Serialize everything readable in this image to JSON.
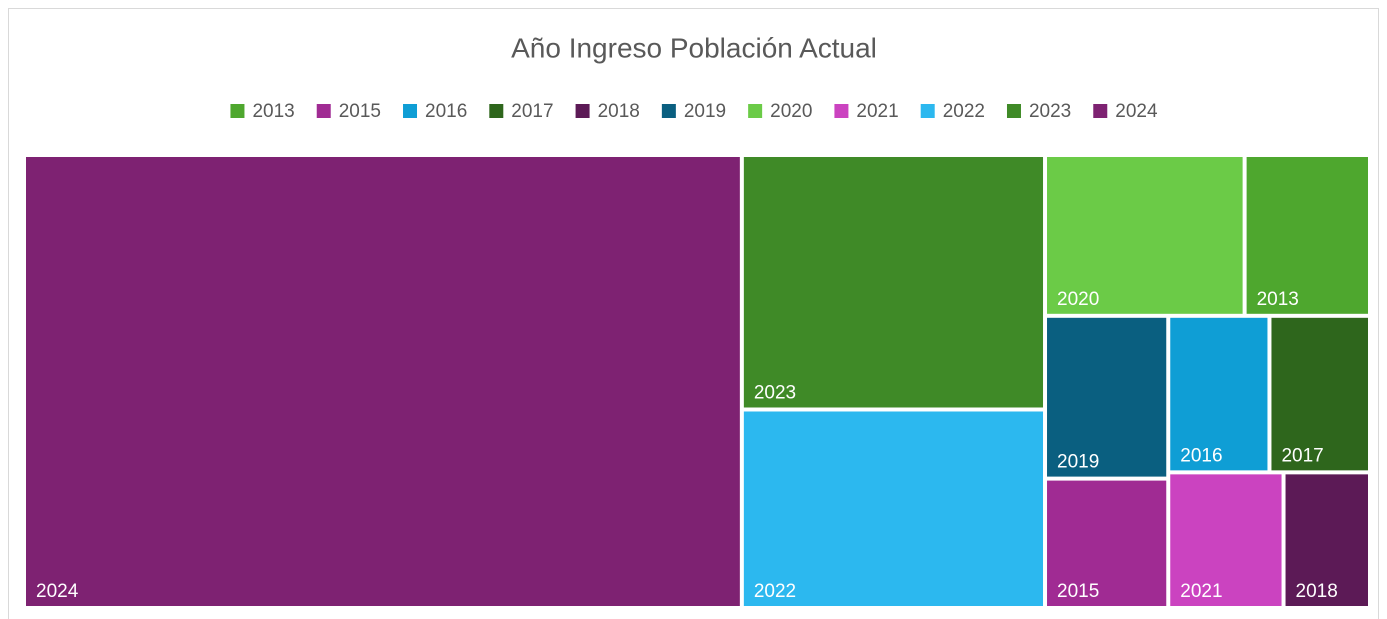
{
  "chart_data": {
    "type": "treemap",
    "title": "Año Ingreso Población Actual",
    "categories": [
      "2013",
      "2015",
      "2016",
      "2017",
      "2018",
      "2019",
      "2020",
      "2021",
      "2022",
      "2023",
      "2024"
    ],
    "values": [
      19.6,
      15.5,
      15.4,
      15.3,
      11.4,
      19.5,
      31.2,
      15.2,
      58.5,
      75.0,
      316.1
    ],
    "colors": [
      "#4ea72e",
      "#a02b93",
      "#0f9ed5",
      "#2e661c",
      "#5c1a56",
      "#0a5f80",
      "#6bcb47",
      "#cb43c0",
      "#2cb8ef",
      "#3f8a27",
      "#7e2272"
    ],
    "legend": "top"
  }
}
